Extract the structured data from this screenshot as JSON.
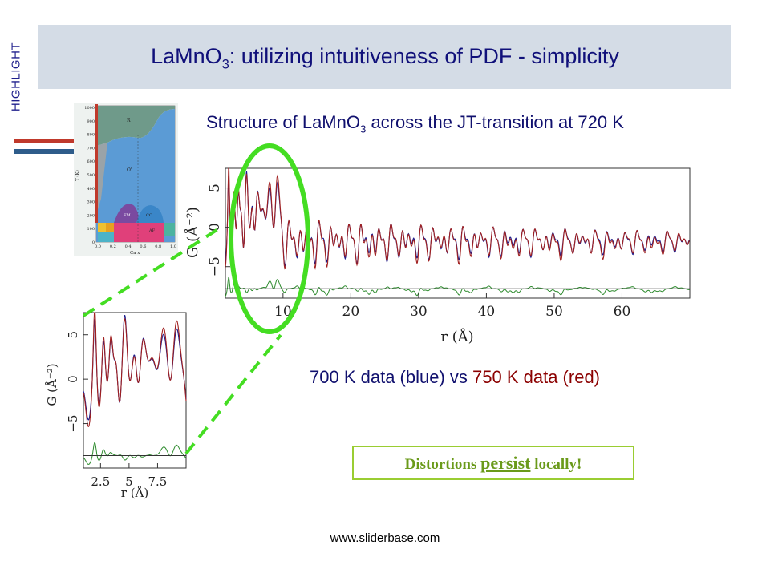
{
  "slide": {
    "tag": "HIGHLIGHT",
    "title_main": "LaMnO",
    "title_sub": "3",
    "title_rest": ": utilizing intuitiveness of PDF - simplicity",
    "subtitle_main": "Structure of LaMnO",
    "subtitle_sub": "3",
    "subtitle_rest": " across the JT-transition at 720 K",
    "legend_a": "700 K data (blue) vs ",
    "legend_b": "750 K data (red)",
    "callout_a": "Distortions ",
    "callout_b": "persist",
    "callout_c": " locally!",
    "footer": "www.sliderbase.com"
  },
  "phase_diagram": {
    "y_ticks": [
      "1000",
      "900",
      "800",
      "700",
      "600",
      "500",
      "400",
      "300",
      "200",
      "100",
      "0"
    ],
    "x_ticks": [
      "0.0",
      "0.2",
      "0.4",
      "0.6",
      "0.8",
      "1.0"
    ],
    "ylabel": "T (K)",
    "xlabel": "Ca x",
    "regions": [
      "R",
      "O'",
      "FM",
      "CO",
      "AF"
    ],
    "colors": {
      "R": "#6f9a8a",
      "Op": "#5b9bd5",
      "FM": "#7a4aa0",
      "CO": "#3a86c8",
      "AF": "#e0407a",
      "marker": "#c0392b"
    }
  },
  "chart_data": [
    {
      "type": "line",
      "xlabel": "r (Å)",
      "ylabel": "G (Å⁻²)",
      "x_ticks": [
        10,
        20,
        30,
        40,
        50,
        60
      ],
      "y_ticks": [
        -5,
        0,
        5
      ],
      "xlim": [
        1.5,
        70
      ],
      "ylim": [
        -9,
        7.5
      ],
      "series": [
        {
          "color": "#1a1a8c",
          "role": "700 K"
        },
        {
          "color": "#a02020",
          "role": "750 K"
        },
        {
          "color": "#2e8b2e",
          "role": "difference",
          "offset": -8
        }
      ]
    },
    {
      "type": "line",
      "xlabel": "r (Å)",
      "ylabel": "G (Å⁻²)",
      "x_ticks": [
        2.5,
        5,
        7.5
      ],
      "x_tick_labels": [
        "2.5",
        "5",
        "7.5"
      ],
      "y_ticks": [
        -5,
        0,
        5
      ],
      "xlim": [
        1.0,
        10
      ],
      "ylim": [
        -10,
        7.5
      ]
    }
  ],
  "arrows": {
    "red": "#c0392b",
    "blue": "#2e5c8a",
    "highlight": "#44dd22"
  }
}
